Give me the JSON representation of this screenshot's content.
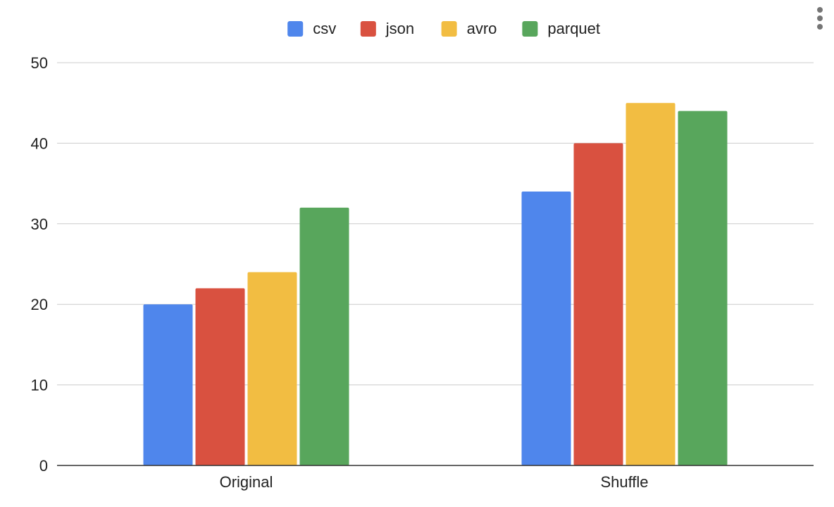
{
  "chart_data": {
    "type": "bar",
    "categories": [
      "Original",
      "Shuffle"
    ],
    "series": [
      {
        "name": "csv",
        "values": [
          20,
          34
        ],
        "color": "#4f86ec"
      },
      {
        "name": "json",
        "values": [
          22,
          40
        ],
        "color": "#d95140"
      },
      {
        "name": "avro",
        "values": [
          24,
          45
        ],
        "color": "#f2bd42"
      },
      {
        "name": "parquet",
        "values": [
          32,
          44
        ],
        "color": "#58a65c"
      }
    ],
    "ylim": [
      0,
      50
    ],
    "yticks": [
      "0",
      "10",
      "20",
      "30",
      "40",
      "50"
    ],
    "grid": true,
    "legend_position": "top-center",
    "title": "",
    "xlabel": "",
    "ylabel": ""
  },
  "menu": {
    "icon": "more-vert-icon"
  }
}
